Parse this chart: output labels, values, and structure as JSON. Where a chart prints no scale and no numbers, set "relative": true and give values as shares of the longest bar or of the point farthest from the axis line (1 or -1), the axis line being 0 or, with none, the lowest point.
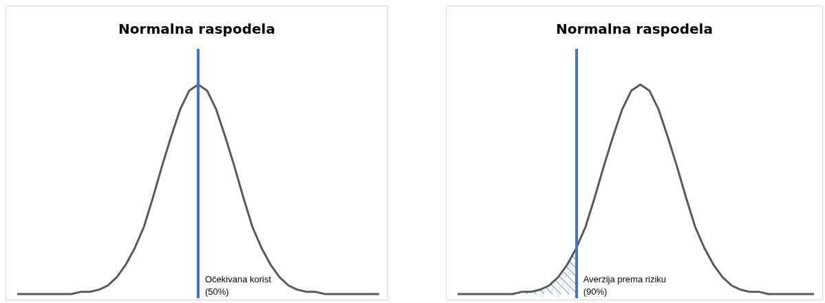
{
  "chart_data": [
    {
      "type": "line",
      "title": "Normalna raspodela",
      "relative": true,
      "tick_labels": false,
      "marker": "none",
      "categories": [
        null,
        null,
        null,
        null,
        null,
        null,
        null,
        null,
        null,
        null,
        null,
        null,
        null,
        null,
        null,
        null,
        null,
        null,
        null,
        null,
        null,
        null,
        null,
        null,
        null,
        null,
        null,
        null,
        null,
        null,
        null,
        null,
        null,
        null,
        null,
        null,
        null,
        null,
        null,
        null,
        null
      ],
      "series": [
        {
          "color": "#595959",
          "values": [
            0,
            0,
            0,
            0,
            0,
            0,
            0,
            0.01,
            0.01,
            0.02,
            0.04,
            0.08,
            0.14,
            0.22,
            0.32,
            0.46,
            0.61,
            0.75,
            0.88,
            0.97,
            1,
            0.97,
            0.88,
            0.75,
            0.61,
            0.46,
            0.32,
            0.22,
            0.14,
            0.08,
            0.04,
            0.02,
            0.01,
            0.01,
            0,
            0,
            0,
            0,
            0,
            0,
            0
          ]
        }
      ],
      "annotations": [
        "Očekivana korist\n(50%)"
      ]
    },
    {
      "type": "line",
      "title": "Normalna raspodela",
      "relative": true,
      "tick_labels": false,
      "marker": "none",
      "categories": [
        null,
        null,
        null,
        null,
        null,
        null,
        null,
        null,
        null,
        null,
        null,
        null,
        null,
        null,
        null,
        null,
        null,
        null,
        null,
        null,
        null,
        null,
        null,
        null,
        null,
        null,
        null,
        null,
        null,
        null,
        null,
        null,
        null,
        null,
        null,
        null,
        null,
        null,
        null,
        null
      ],
      "series": [
        {
          "color": "#595959",
          "values": [
            0,
            0,
            0,
            0,
            0,
            0,
            0,
            0.01,
            0.01,
            0.02,
            0.04,
            0.08,
            0.14,
            0.22,
            0.32,
            0.46,
            0.61,
            0.75,
            0.88,
            0.97,
            1,
            0.97,
            0.88,
            0.75,
            0.61,
            0.46,
            0.32,
            0.22,
            0.14,
            0.08,
            0.04,
            0.02,
            0.01,
            0.01,
            0,
            0,
            0,
            0,
            0,
            0
          ]
        },
        {
          "type": "area",
          "color": "#4472c4",
          "values": [
            0,
            0,
            0,
            0,
            0,
            0,
            0,
            0.01,
            0.01,
            0.02,
            0.04,
            0.08,
            0.14,
            0.22,
            null,
            null,
            null,
            null,
            null,
            null,
            null,
            null,
            null,
            null,
            null,
            null,
            null,
            null,
            null,
            null,
            null,
            null,
            null,
            null,
            null,
            null,
            null,
            null,
            null,
            null
          ]
        }
      ],
      "annotations": [
        "Averzija prema riziku\n(90%)"
      ]
    }
  ]
}
